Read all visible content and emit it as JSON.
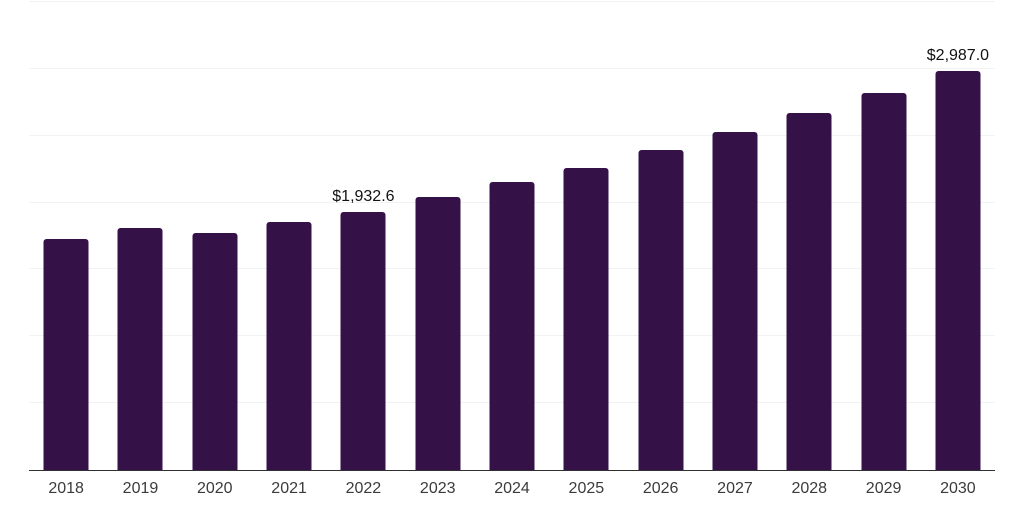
{
  "chart_data": {
    "type": "bar",
    "title": "",
    "xlabel": "",
    "ylabel": "",
    "ylim": [
      0,
      3500
    ],
    "gridline_interval": 500,
    "grid": "horizontal, light gray, no y-axis tick labels",
    "legend": "none",
    "categories": [
      "2018",
      "2019",
      "2020",
      "2021",
      "2022",
      "2023",
      "2024",
      "2025",
      "2026",
      "2027",
      "2028",
      "2029",
      "2030"
    ],
    "values": [
      1725,
      1808,
      1770,
      1856,
      1932.6,
      2041,
      2152,
      2262,
      2390,
      2526,
      2670,
      2820,
      2987
    ],
    "points": [
      {
        "year": "2018",
        "value": 1725,
        "label": ""
      },
      {
        "year": "2019",
        "value": 1808,
        "label": ""
      },
      {
        "year": "2020",
        "value": 1770,
        "label": ""
      },
      {
        "year": "2021",
        "value": 1856,
        "label": ""
      },
      {
        "year": "2022",
        "value": 1932.6,
        "label": "$1,932.6"
      },
      {
        "year": "2023",
        "value": 2041,
        "label": ""
      },
      {
        "year": "2024",
        "value": 2152,
        "label": ""
      },
      {
        "year": "2025",
        "value": 2262,
        "label": ""
      },
      {
        "year": "2026",
        "value": 2390,
        "label": ""
      },
      {
        "year": "2027",
        "value": 2526,
        "label": ""
      },
      {
        "year": "2028",
        "value": 2670,
        "label": ""
      },
      {
        "year": "2029",
        "value": 2820,
        "label": ""
      },
      {
        "year": "2030",
        "value": 2987,
        "label": "$2,987.0"
      }
    ],
    "colors": {
      "bar": "#341248",
      "gridline": "#f2f2f2",
      "axis_line": "#303030",
      "tick_label": "#3b3b3b",
      "value_label": "#111111",
      "background": "#ffffff"
    }
  }
}
